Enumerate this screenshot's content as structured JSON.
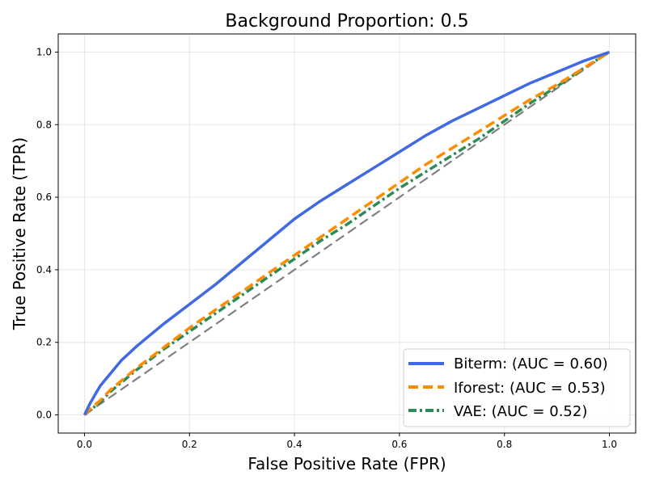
{
  "chart_data": {
    "type": "line",
    "title": "Background Proportion: 0.5",
    "xlabel": "False Positive Rate (FPR)",
    "ylabel": "True Positive Rate (TPR)",
    "xlim": [
      -0.05,
      1.05
    ],
    "ylim": [
      -0.05,
      1.05
    ],
    "xticks": [
      0.0,
      0.2,
      0.4,
      0.6,
      0.8,
      1.0
    ],
    "yticks": [
      0.0,
      0.2,
      0.4,
      0.6,
      0.8,
      1.0
    ],
    "xtick_labels": [
      "0.0",
      "0.2",
      "0.4",
      "0.6",
      "0.8",
      "1.0"
    ],
    "ytick_labels": [
      "0.0",
      "0.2",
      "0.4",
      "0.6",
      "0.8",
      "1.0"
    ],
    "grid": true,
    "legend_position": "bottom-right",
    "series": [
      {
        "name": "Biterm",
        "label": "Biterm: (AUC = 0.60)",
        "color": "#4169e1",
        "dash": "solid",
        "x": [
          0.0,
          0.01,
          0.02,
          0.03,
          0.05,
          0.07,
          0.1,
          0.15,
          0.2,
          0.25,
          0.3,
          0.35,
          0.4,
          0.45,
          0.5,
          0.55,
          0.6,
          0.65,
          0.7,
          0.75,
          0.8,
          0.85,
          0.9,
          0.95,
          1.0
        ],
        "y": [
          0.0,
          0.03,
          0.055,
          0.08,
          0.115,
          0.15,
          0.19,
          0.25,
          0.305,
          0.36,
          0.42,
          0.48,
          0.54,
          0.59,
          0.635,
          0.68,
          0.725,
          0.77,
          0.81,
          0.845,
          0.88,
          0.915,
          0.945,
          0.975,
          1.0
        ]
      },
      {
        "name": "Iforest",
        "label": "Iforest: (AUC = 0.53)",
        "color": "#ff8c00",
        "dash": "dashed",
        "x": [
          0.0,
          0.01,
          0.03,
          0.05,
          0.1,
          0.15,
          0.2,
          0.25,
          0.3,
          0.35,
          0.4,
          0.45,
          0.5,
          0.55,
          0.6,
          0.65,
          0.7,
          0.75,
          0.8,
          0.85,
          0.9,
          0.95,
          1.0
        ],
        "y": [
          0.0,
          0.015,
          0.04,
          0.07,
          0.13,
          0.185,
          0.24,
          0.29,
          0.34,
          0.39,
          0.44,
          0.49,
          0.54,
          0.59,
          0.64,
          0.69,
          0.735,
          0.78,
          0.825,
          0.87,
          0.91,
          0.955,
          1.0
        ]
      },
      {
        "name": "VAE",
        "label": "VAE: (AUC = 0.52)",
        "color": "#2e8b57",
        "dash": "dashdot",
        "x": [
          0.0,
          0.01,
          0.03,
          0.05,
          0.1,
          0.15,
          0.2,
          0.25,
          0.3,
          0.35,
          0.4,
          0.45,
          0.5,
          0.55,
          0.6,
          0.65,
          0.7,
          0.75,
          0.8,
          0.85,
          0.9,
          0.95,
          1.0
        ],
        "y": [
          0.0,
          0.012,
          0.035,
          0.065,
          0.125,
          0.18,
          0.23,
          0.28,
          0.33,
          0.38,
          0.43,
          0.48,
          0.525,
          0.575,
          0.625,
          0.67,
          0.715,
          0.76,
          0.81,
          0.86,
          0.905,
          0.955,
          1.0
        ]
      },
      {
        "name": "Random",
        "label": "",
        "color": "#808080",
        "dash": "dashed",
        "x": [
          0.0,
          1.0
        ],
        "y": [
          0.0,
          1.0
        ]
      }
    ]
  }
}
